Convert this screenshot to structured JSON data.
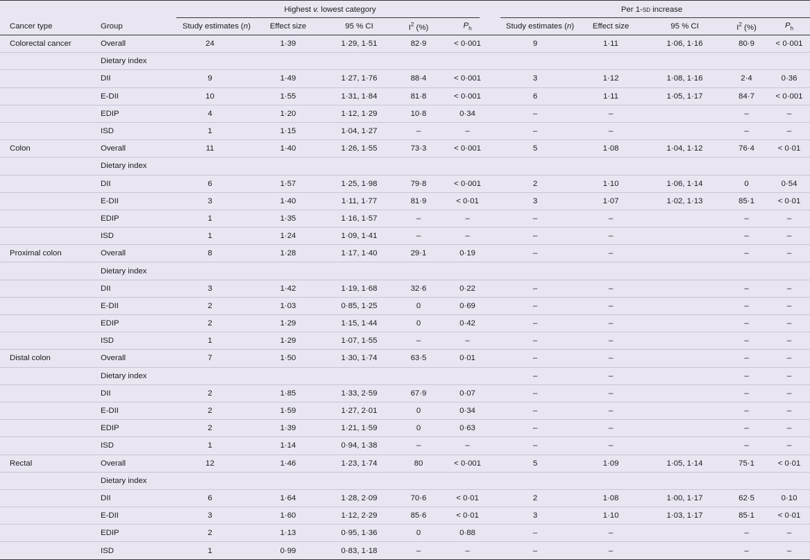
{
  "headers": {
    "group_left_prefix": "Highest ",
    "group_left_v": "v.",
    "group_left_suffix": " lowest category",
    "group_right_prefix": "Per 1-",
    "group_right_sd": "sd",
    "group_right_suffix": " increase",
    "cancer_type": "Cancer type",
    "group": "Group",
    "study_estimates": "Study estimates (",
    "n": "n",
    "study_estimates_close": ")",
    "effect_size": "Effect size",
    "ci": "95 % CI",
    "i2_base": "I",
    "i2_sup": "2",
    "i2_unit": " (%)",
    "ph_base": "P",
    "ph_sub": "h"
  },
  "rows": [
    {
      "cancer": "Colorectal cancer",
      "group": "Overall",
      "l_n": "24",
      "l_es": "1·39",
      "l_ci": "1·29, 1·51",
      "l_i2": "82·9",
      "l_ph": "< 0·001",
      "r_n": "9",
      "r_es": "1·11",
      "r_ci": "1·06, 1·16",
      "r_i2": "80·9",
      "r_ph": "< 0·001"
    },
    {
      "cancer": "",
      "group": "Dietary index",
      "l_n": "",
      "l_es": "",
      "l_ci": "",
      "l_i2": "",
      "l_ph": "",
      "r_n": "",
      "r_es": "",
      "r_ci": "",
      "r_i2": "",
      "r_ph": ""
    },
    {
      "cancer": "",
      "group": "DII",
      "l_n": "9",
      "l_es": "1·49",
      "l_ci": "1·27, 1·76",
      "l_i2": "88·4",
      "l_ph": "< 0·001",
      "r_n": "3",
      "r_es": "1·12",
      "r_ci": "1·08, 1·16",
      "r_i2": "2·4",
      "r_ph": "0·36"
    },
    {
      "cancer": "",
      "group": "E-DII",
      "l_n": "10",
      "l_es": "1·55",
      "l_ci": "1·31, 1·84",
      "l_i2": "81·8",
      "l_ph": "< 0·001",
      "r_n": "6",
      "r_es": "1·11",
      "r_ci": "1·05, 1·17",
      "r_i2": "84·7",
      "r_ph": "< 0·001"
    },
    {
      "cancer": "",
      "group": "EDIP",
      "l_n": "4",
      "l_es": "1·20",
      "l_ci": "1·12, 1·29",
      "l_i2": "10·8",
      "l_ph": "0·34",
      "r_n": "–",
      "r_es": "–",
      "r_ci": "",
      "r_i2": "–",
      "r_ph": "–"
    },
    {
      "cancer": "",
      "group": "ISD",
      "l_n": "1",
      "l_es": "1·15",
      "l_ci": "1·04, 1·27",
      "l_i2": "–",
      "l_ph": "–",
      "r_n": "–",
      "r_es": "–",
      "r_ci": "",
      "r_i2": "–",
      "r_ph": "–"
    },
    {
      "cancer": "Colon",
      "group": "Overall",
      "l_n": "11",
      "l_es": "1·40",
      "l_ci": "1·26, 1·55",
      "l_i2": "73·3",
      "l_ph": "< 0·001",
      "r_n": "5",
      "r_es": "1·08",
      "r_ci": "1·04, 1·12",
      "r_i2": "76·4",
      "r_ph": "< 0·01"
    },
    {
      "cancer": "",
      "group": "Dietary index",
      "l_n": "",
      "l_es": "",
      "l_ci": "",
      "l_i2": "",
      "l_ph": "",
      "r_n": "",
      "r_es": "",
      "r_ci": "",
      "r_i2": "",
      "r_ph": ""
    },
    {
      "cancer": "",
      "group": "DII",
      "l_n": "6",
      "l_es": "1·57",
      "l_ci": "1·25, 1·98",
      "l_i2": "79·8",
      "l_ph": "< 0·001",
      "r_n": "2",
      "r_es": "1·10",
      "r_ci": "1·06, 1·14",
      "r_i2": "0",
      "r_ph": "0·54"
    },
    {
      "cancer": "",
      "group": "E-DII",
      "l_n": "3",
      "l_es": "1·40",
      "l_ci": "1·11, 1·77",
      "l_i2": "81·9",
      "l_ph": "< 0·01",
      "r_n": "3",
      "r_es": "1·07",
      "r_ci": "1·02, 1·13",
      "r_i2": "85·1",
      "r_ph": "< 0·01"
    },
    {
      "cancer": "",
      "group": "EDIP",
      "l_n": "1",
      "l_es": "1·35",
      "l_ci": "1·16, 1·57",
      "l_i2": "–",
      "l_ph": "–",
      "r_n": "–",
      "r_es": "–",
      "r_ci": "",
      "r_i2": "–",
      "r_ph": "–"
    },
    {
      "cancer": "",
      "group": "ISD",
      "l_n": "1",
      "l_es": "1·24",
      "l_ci": "1·09, 1·41",
      "l_i2": "–",
      "l_ph": "–",
      "r_n": "–",
      "r_es": "–",
      "r_ci": "",
      "r_i2": "–",
      "r_ph": "–"
    },
    {
      "cancer": "Proximal colon",
      "group": "Overall",
      "l_n": "8",
      "l_es": "1·28",
      "l_ci": "1·17, 1·40",
      "l_i2": "29·1",
      "l_ph": "0·19",
      "r_n": "–",
      "r_es": "–",
      "r_ci": "",
      "r_i2": "–",
      "r_ph": "–"
    },
    {
      "cancer": "",
      "group": "Dietary index",
      "l_n": "",
      "l_es": "",
      "l_ci": "",
      "l_i2": "",
      "l_ph": "",
      "r_n": "",
      "r_es": "",
      "r_ci": "",
      "r_i2": "",
      "r_ph": ""
    },
    {
      "cancer": "",
      "group": "DII",
      "l_n": "3",
      "l_es": "1·42",
      "l_ci": "1·19, 1·68",
      "l_i2": "32·6",
      "l_ph": "0·22",
      "r_n": "–",
      "r_es": "–",
      "r_ci": "",
      "r_i2": "–",
      "r_ph": "–"
    },
    {
      "cancer": "",
      "group": "E-DII",
      "l_n": "2",
      "l_es": "1·03",
      "l_ci": "0·85, 1·25",
      "l_i2": "0",
      "l_ph": "0·69",
      "r_n": "–",
      "r_es": "–",
      "r_ci": "",
      "r_i2": "–",
      "r_ph": "–"
    },
    {
      "cancer": "",
      "group": "EDIP",
      "l_n": "2",
      "l_es": "1·29",
      "l_ci": "1·15, 1·44",
      "l_i2": "0",
      "l_ph": "0·42",
      "r_n": "–",
      "r_es": "–",
      "r_ci": "",
      "r_i2": "–",
      "r_ph": "–"
    },
    {
      "cancer": "",
      "group": "ISD",
      "l_n": "1",
      "l_es": "1·29",
      "l_ci": "1·07, 1·55",
      "l_i2": "–",
      "l_ph": "–",
      "r_n": "–",
      "r_es": "–",
      "r_ci": "",
      "r_i2": "–",
      "r_ph": "–"
    },
    {
      "cancer": "Distal colon",
      "group": "Overall",
      "l_n": "7",
      "l_es": "1·50",
      "l_ci": "1·30, 1·74",
      "l_i2": "63·5",
      "l_ph": "0·01",
      "r_n": "–",
      "r_es": "–",
      "r_ci": "",
      "r_i2": "–",
      "r_ph": "–"
    },
    {
      "cancer": "",
      "group": "Dietary index",
      "l_n": "",
      "l_es": "",
      "l_ci": "",
      "l_i2": "",
      "l_ph": "",
      "r_n": "–",
      "r_es": "–",
      "r_ci": "",
      "r_i2": "–",
      "r_ph": "–"
    },
    {
      "cancer": "",
      "group": "DII",
      "l_n": "2",
      "l_es": "1·85",
      "l_ci": "1·33, 2·59",
      "l_i2": "67·9",
      "l_ph": "0·07",
      "r_n": "–",
      "r_es": "–",
      "r_ci": "",
      "r_i2": "–",
      "r_ph": "–"
    },
    {
      "cancer": "",
      "group": "E-DII",
      "l_n": "2",
      "l_es": "1·59",
      "l_ci": "1·27, 2·01",
      "l_i2": "0",
      "l_ph": "0·34",
      "r_n": "–",
      "r_es": "–",
      "r_ci": "",
      "r_i2": "–",
      "r_ph": "–"
    },
    {
      "cancer": "",
      "group": "EDIP",
      "l_n": "2",
      "l_es": "1·39",
      "l_ci": "1·21, 1·59",
      "l_i2": "0",
      "l_ph": "0·63",
      "r_n": "–",
      "r_es": "–",
      "r_ci": "",
      "r_i2": "–",
      "r_ph": "–"
    },
    {
      "cancer": "",
      "group": "ISD",
      "l_n": "1",
      "l_es": "1·14",
      "l_ci": "0·94, 1·38",
      "l_i2": "–",
      "l_ph": "–",
      "r_n": "–",
      "r_es": "–",
      "r_ci": "",
      "r_i2": "–",
      "r_ph": "–"
    },
    {
      "cancer": "Rectal",
      "group": "Overall",
      "l_n": "12",
      "l_es": "1·46",
      "l_ci": "1·23, 1·74",
      "l_i2": "80",
      "l_ph": "< 0·001",
      "r_n": "5",
      "r_es": "1·09",
      "r_ci": "1·05, 1·14",
      "r_i2": "75·1",
      "r_ph": "< 0·01"
    },
    {
      "cancer": "",
      "group": "Dietary index",
      "l_n": "",
      "l_es": "",
      "l_ci": "",
      "l_i2": "",
      "l_ph": "",
      "r_n": "",
      "r_es": "",
      "r_ci": "",
      "r_i2": "",
      "r_ph": ""
    },
    {
      "cancer": "",
      "group": "DII",
      "l_n": "6",
      "l_es": "1·64",
      "l_ci": "1·28, 2·09",
      "l_i2": "70·6",
      "l_ph": "< 0·01",
      "r_n": "2",
      "r_es": "1·08",
      "r_ci": "1·00, 1·17",
      "r_i2": "62·5",
      "r_ph": "0·10"
    },
    {
      "cancer": "",
      "group": "E-DII",
      "l_n": "3",
      "l_es": "1·60",
      "l_ci": "1·12, 2·29",
      "l_i2": "85·6",
      "l_ph": "< 0·01",
      "r_n": "3",
      "r_es": "1·10",
      "r_ci": "1·03, 1·17",
      "r_i2": "85·1",
      "r_ph": "< 0·01"
    },
    {
      "cancer": "",
      "group": "EDIP",
      "l_n": "2",
      "l_es": "1·13",
      "l_ci": "0·95, 1·36",
      "l_i2": "0",
      "l_ph": "0·88",
      "r_n": "–",
      "r_es": "–",
      "r_ci": "",
      "r_i2": "–",
      "r_ph": "–"
    },
    {
      "cancer": "",
      "group": "ISD",
      "l_n": "1",
      "l_es": "0·99",
      "l_ci": "0·83, 1·18",
      "l_i2": "–",
      "l_ph": "–",
      "r_n": "–",
      "r_es": "–",
      "r_ci": "",
      "r_i2": "–",
      "r_ph": "–"
    }
  ]
}
